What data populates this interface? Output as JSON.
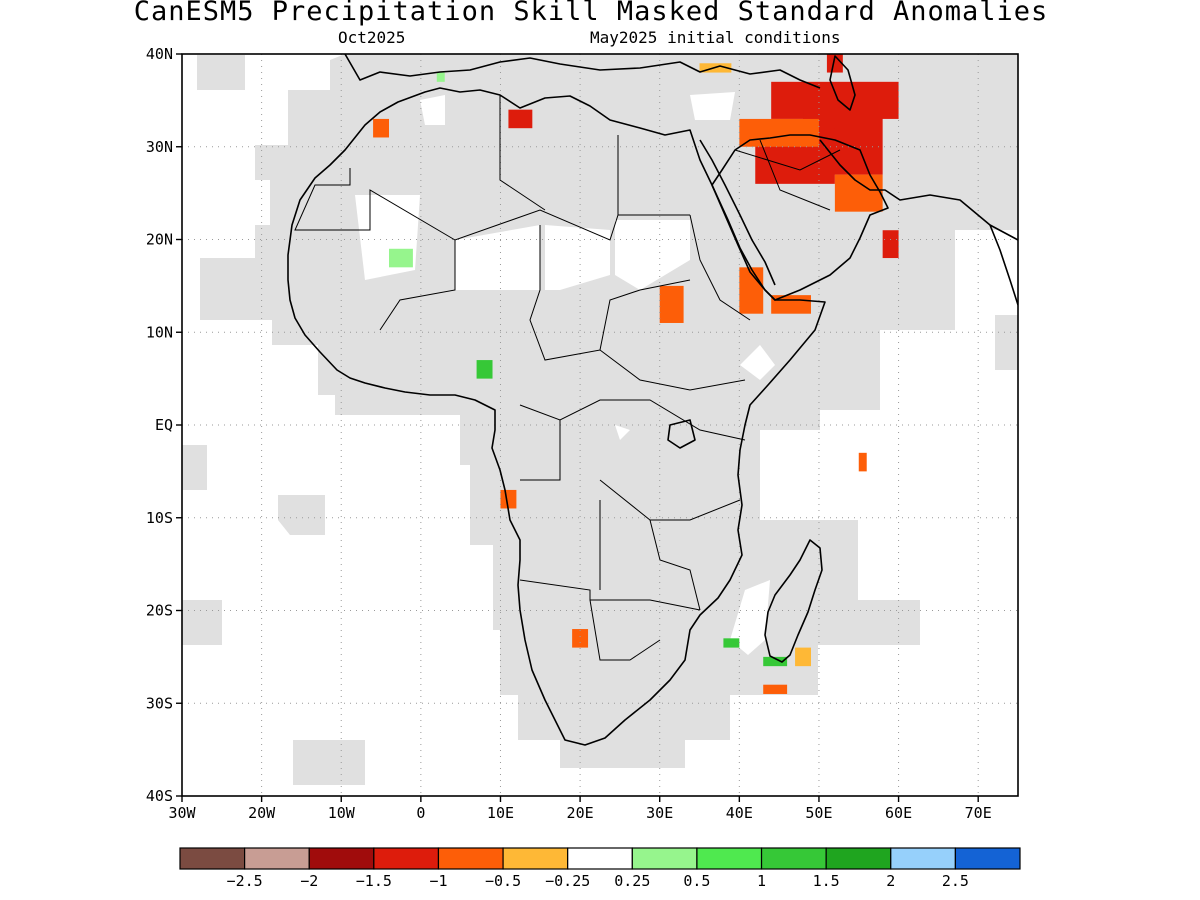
{
  "title": "CanESM5 Precipitation Skill Masked Standard Anomalies",
  "subtitle_left": "Oct2025",
  "subtitle_right": "May2025 initial conditions",
  "map": {
    "lon_range": [
      -30,
      75
    ],
    "lat_range": [
      -40,
      40
    ],
    "lat_ticks": [
      {
        "lat": 40,
        "label": "40N"
      },
      {
        "lat": 30,
        "label": "30N"
      },
      {
        "lat": 20,
        "label": "20N"
      },
      {
        "lat": 10,
        "label": "10N"
      },
      {
        "lat": 0,
        "label": "EQ"
      },
      {
        "lat": -10,
        "label": "10S"
      },
      {
        "lat": -20,
        "label": "20S"
      },
      {
        "lat": -30,
        "label": "30S"
      },
      {
        "lat": -40,
        "label": "40S"
      }
    ],
    "lon_ticks": [
      {
        "lon": -30,
        "label": "30W"
      },
      {
        "lon": -20,
        "label": "20W"
      },
      {
        "lon": -10,
        "label": "10W"
      },
      {
        "lon": 0,
        "label": "0"
      },
      {
        "lon": 10,
        "label": "10E"
      },
      {
        "lon": 20,
        "label": "20E"
      },
      {
        "lon": 30,
        "label": "30E"
      },
      {
        "lon": 40,
        "label": "40E"
      },
      {
        "lon": 50,
        "label": "50E"
      },
      {
        "lon": 60,
        "label": "60E"
      },
      {
        "lon": 70,
        "label": "70E"
      }
    ],
    "mask_color": "#e0e0e0",
    "anomaly_cells": [
      {
        "lon": 44,
        "lat": 33,
        "w": 16,
        "h": 4,
        "color": "#dd1c0c"
      },
      {
        "lon": 48,
        "lat": 27,
        "w": 10,
        "h": 7,
        "color": "#dd1c0c"
      },
      {
        "lon": 42,
        "lat": 26,
        "w": 10,
        "h": 6,
        "color": "#dd1c0c"
      },
      {
        "lon": 40,
        "lat": 30,
        "w": 10,
        "h": 3,
        "color": "#fd5e08"
      },
      {
        "lon": 52,
        "lat": 23,
        "w": 6,
        "h": 4,
        "color": "#fd5e08"
      },
      {
        "lon": 51,
        "lat": 38,
        "w": 2,
        "h": 2,
        "color": "#dd1c0c"
      },
      {
        "lon": 11,
        "lat": 32,
        "w": 3,
        "h": 2,
        "color": "#dd1c0c"
      },
      {
        "lon": 58,
        "lat": 18,
        "w": 2,
        "h": 3,
        "color": "#dd1c0c"
      },
      {
        "lon": 44,
        "lat": 12,
        "w": 5,
        "h": 2,
        "color": "#fd5e08"
      },
      {
        "lon": 40,
        "lat": 12,
        "w": 3,
        "h": 5,
        "color": "#fd5e08"
      },
      {
        "lon": 30,
        "lat": 11,
        "w": 3,
        "h": 4,
        "color": "#fd5e08"
      },
      {
        "lon": 55,
        "lat": -5,
        "w": 1,
        "h": 2,
        "color": "#fd5e08"
      },
      {
        "lon": 10,
        "lat": -9,
        "w": 2,
        "h": 2,
        "color": "#fd5e08"
      },
      {
        "lon": 19,
        "lat": -24,
        "w": 2,
        "h": 2,
        "color": "#fd5e08"
      },
      {
        "lon": -6,
        "lat": 31,
        "w": 2,
        "h": 2,
        "color": "#fd5e08"
      },
      {
        "lon": 35,
        "lat": 38,
        "w": 4,
        "h": 1,
        "color": "#feb836"
      },
      {
        "lon": 47,
        "lat": -26,
        "w": 2,
        "h": 2,
        "color": "#feb836"
      },
      {
        "lon": 43,
        "lat": -29,
        "w": 3,
        "h": 1,
        "color": "#fd5e08"
      },
      {
        "lon": -4,
        "lat": 17,
        "w": 3,
        "h": 2,
        "color": "#96f58d"
      },
      {
        "lon": 7,
        "lat": 5,
        "w": 2,
        "h": 2,
        "color": "#36c837"
      },
      {
        "lon": 38,
        "lat": -24,
        "w": 2,
        "h": 1,
        "color": "#36c837"
      },
      {
        "lon": 43,
        "lat": -26,
        "w": 3,
        "h": 1,
        "color": "#36c837"
      },
      {
        "lon": 2,
        "lat": 37,
        "w": 1,
        "h": 1,
        "color": "#96f58d"
      }
    ]
  },
  "colorbar": {
    "colors": [
      "#7b4b41",
      "#c89d94",
      "#a00c0c",
      "#dd1c0c",
      "#fd5e08",
      "#feb836",
      "#ffffff",
      "#96f58d",
      "#4fe94f",
      "#36c837",
      "#1fa51f",
      "#96d0fb",
      "#1463d5"
    ],
    "labels": [
      "−2.5",
      "−2",
      "−1.5",
      "−1",
      "−0.5",
      "−0.25",
      "0.25",
      "0.5",
      "1",
      "1.5",
      "2",
      "2.5"
    ]
  }
}
